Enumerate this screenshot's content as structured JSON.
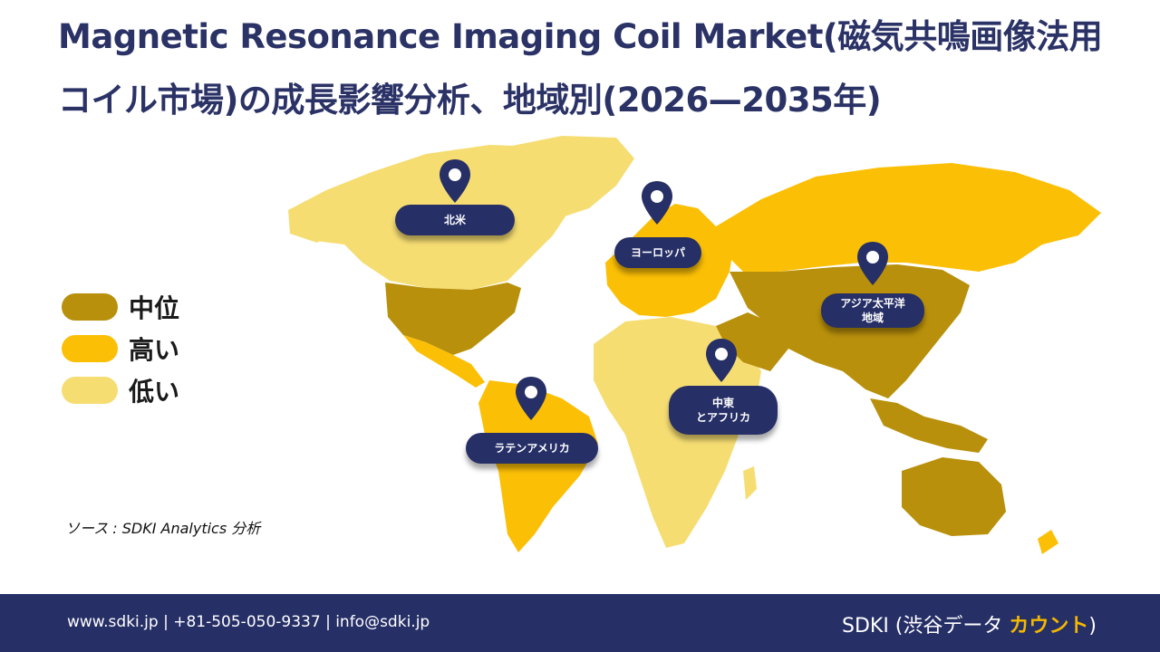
{
  "title": {
    "line1": "Magnetic Resonance Imaging Coil Market(磁気共鳴画像法用",
    "line2": "コイル市場)の成長影響分析、地域別(2026—2035年)"
  },
  "legend": [
    {
      "label": "中位",
      "color": "#b8900b"
    },
    {
      "label": "高い",
      "color": "#fbbf06"
    },
    {
      "label": "低い",
      "color": "#f6dd72"
    }
  ],
  "regions": {
    "north_america": "北米",
    "europe": "ヨーロッパ",
    "asia_pacific_l1": "アジア太平洋",
    "asia_pacific_l2": "地域",
    "mea_l1": "中東",
    "mea_l2": "とアフリカ",
    "latin_america": "ラテンアメリカ"
  },
  "source": "ソース : SDKI Analytics 分析",
  "footer": {
    "contact": "www.sdki.jp | +81-505-050-9337 | info@sdki.jp",
    "brand_prefix": "SDKI (渋谷データ",
    "brand_accent": "カウント",
    "brand_suffix": ")"
  },
  "colors": {
    "medium": "#b8900b",
    "high": "#fbbf06",
    "low": "#f6dd72",
    "navy": "#262f66"
  }
}
